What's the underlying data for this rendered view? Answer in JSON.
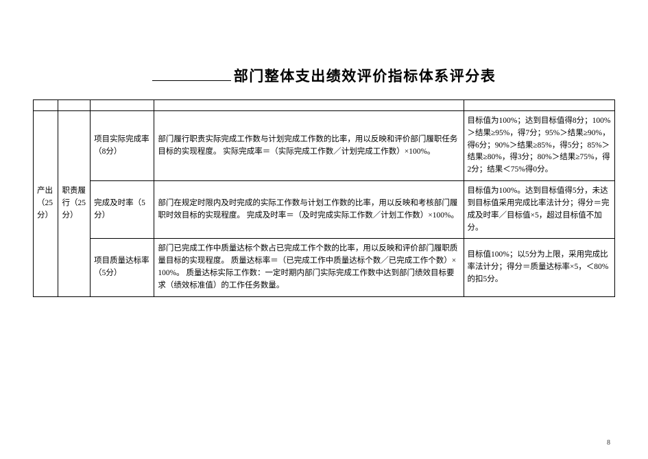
{
  "title": "部门整体支出绩效评价指标体系评分表",
  "level1": "产出（25分）",
  "level2": "职责履行（25分）",
  "rows": [
    {
      "indicator": "项目实际完成率（8分）",
      "desc": "部门履行职责实际完成工作数与计划完成工作数的比率，用以反映和评价部门履职任务目标的实现程度。\n实际完成率＝（实际完成工作数／计划完成工作数）×100%。",
      "score": "目标值为100%；达到目标值得8分；100%＞结果≥95%，得7分；95%＞结果≥90%，得6分；90%＞结果≥85%，得5分；85%＞结果≥80%，得3分；80%＞结果≥75%，得2分；结果＜75%得0分。"
    },
    {
      "indicator": "完成及时率（5分）",
      "desc": "部门在规定时限内及时完成的实际工作数与计划工作数的比率，用以反映和考核部门履职时效目标的实现程度。\n完成及时率＝（及时完成实际工作数／计划工作数）×100%。",
      "score": "目标值为100%。达到目标值得5分，未达到目标值采用完成比率法计分；得分＝完成及时率／目标值×5，超过目标值不加分。"
    },
    {
      "indicator": "项目质量达标率（5分）",
      "desc": "部门已完成工作中质量达标个数占已完成工作个数的比率，用以反映和评价部门履职质量目标的实现程度。\n质量达标率＝（已完成工作中质量达标个数／已完成工作个数）×100%。\n质量达标实际工作数：一定时期内部门实际完成工作数中达到部门绩效目标要求（绩效标准值）的工作任务数量。",
      "score": "目标值100%；以5分为上限，采用完成比率法计分；得分＝质量达标率×5，＜80%的扣5分。"
    }
  ],
  "page_number": "8"
}
